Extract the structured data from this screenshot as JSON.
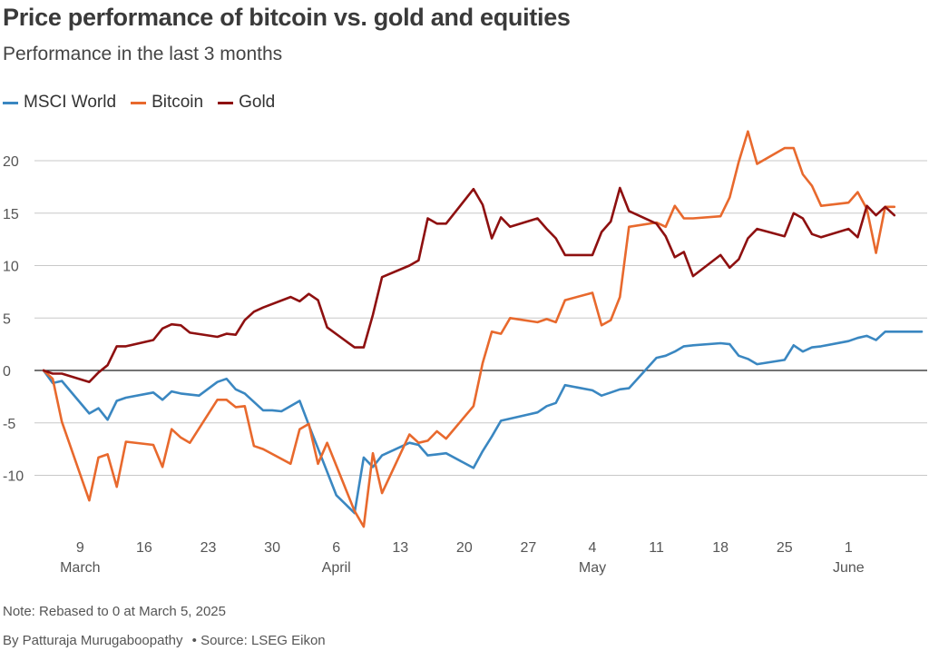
{
  "title": "Price performance of bitcoin vs. gold and equities",
  "subtitle": "Performance in the last 3 months",
  "note": "Note: Rebased to 0 at March 5, 2025",
  "credit": {
    "author": "By Patturaja Murugaboopathy",
    "separator": "•",
    "source": "Source: LSEG Eikon"
  },
  "chart_data": {
    "type": "line",
    "ylim": [
      -15,
      24
    ],
    "yticks": [
      20,
      15,
      10,
      5,
      0,
      -5,
      -10
    ],
    "grid": true,
    "legend_position": "top-left",
    "x_range": [
      0,
      96
    ],
    "xticks": [
      {
        "x": 4,
        "label": "9"
      },
      {
        "x": 11,
        "label": "16"
      },
      {
        "x": 18,
        "label": "23"
      },
      {
        "x": 25,
        "label": "30"
      },
      {
        "x": 32,
        "label": "6"
      },
      {
        "x": 39,
        "label": "13"
      },
      {
        "x": 46,
        "label": "20"
      },
      {
        "x": 53,
        "label": "27"
      },
      {
        "x": 60,
        "label": "4"
      },
      {
        "x": 67,
        "label": "11"
      },
      {
        "x": 74,
        "label": "18"
      },
      {
        "x": 81,
        "label": "25"
      },
      {
        "x": 88,
        "label": "1"
      }
    ],
    "months": [
      {
        "x": 4,
        "label": "March"
      },
      {
        "x": 32,
        "label": "April"
      },
      {
        "x": 60,
        "label": "May"
      },
      {
        "x": 88,
        "label": "June"
      }
    ],
    "series": [
      {
        "name": "MSCI World",
        "color": "#3a87c1",
        "x": [
          0,
          1,
          2,
          5,
          6,
          7,
          8,
          9,
          12,
          13,
          14,
          15,
          17,
          19,
          20,
          21,
          22,
          24,
          25,
          26,
          27,
          28,
          29,
          32,
          34,
          35,
          36,
          37,
          40,
          41,
          42,
          43,
          44,
          47,
          48,
          49,
          50,
          53,
          54,
          55,
          56,
          57,
          60,
          61,
          62,
          63,
          64,
          67,
          68,
          69,
          70,
          71,
          74,
          75,
          76,
          77,
          78,
          81,
          82,
          83,
          84,
          85,
          88,
          89,
          90,
          91,
          92,
          95,
          96
        ],
        "y": [
          0,
          -1.2,
          -1.0,
          -4.1,
          -3.6,
          -4.7,
          -2.9,
          -2.6,
          -2.1,
          -2.8,
          -2.0,
          -2.2,
          -2.4,
          -1.1,
          -0.8,
          -1.8,
          -2.2,
          -3.8,
          -3.8,
          -3.9,
          -3.4,
          -2.9,
          -5.2,
          -11.9,
          -13.6,
          -8.3,
          -9.2,
          -8.1,
          -6.9,
          -7.1,
          -8.1,
          -8.0,
          -7.9,
          -9.3,
          -7.7,
          -6.3,
          -4.8,
          -4.2,
          -4.0,
          -3.4,
          -3.1,
          -1.4,
          -1.9,
          -2.4,
          -2.1,
          -1.8,
          -1.7,
          1.2,
          1.4,
          1.8,
          2.3,
          2.4,
          2.6,
          2.5,
          1.4,
          1.1,
          0.6,
          1.0,
          2.4,
          1.8,
          2.2,
          2.3,
          2.8,
          3.1,
          3.3,
          2.9,
          3.7,
          3.7,
          3.7
        ]
      },
      {
        "name": "Bitcoin",
        "color": "#e8692d",
        "x": [
          0,
          1,
          2,
          5,
          6,
          7,
          8,
          9,
          12,
          13,
          14,
          15,
          16,
          19,
          20,
          21,
          22,
          23,
          24,
          27,
          28,
          29,
          30,
          31,
          34,
          35,
          36,
          37,
          40,
          41,
          42,
          43,
          44,
          47,
          48,
          49,
          50,
          51,
          54,
          55,
          56,
          57,
          60,
          61,
          62,
          63,
          64,
          67,
          68,
          69,
          70,
          71,
          74,
          75,
          76,
          77,
          78,
          81,
          82,
          83,
          84,
          85,
          88,
          89,
          90,
          91,
          92,
          93
        ],
        "y": [
          0,
          -0.8,
          -4.9,
          -12.4,
          -8.3,
          -8.0,
          -11.1,
          -6.8,
          -7.1,
          -9.2,
          -5.6,
          -6.4,
          -6.9,
          -2.8,
          -2.8,
          -3.5,
          -3.4,
          -7.2,
          -7.5,
          -8.9,
          -5.6,
          -5.1,
          -8.9,
          -6.9,
          -13.4,
          -14.9,
          -7.9,
          -11.7,
          -6.1,
          -6.9,
          -6.7,
          -5.8,
          -6.5,
          -3.4,
          0.7,
          3.7,
          3.5,
          5.0,
          4.6,
          4.9,
          4.6,
          6.7,
          7.4,
          4.3,
          4.8,
          7.0,
          13.7,
          14.1,
          13.7,
          15.7,
          14.5,
          14.5,
          14.7,
          16.5,
          19.9,
          22.8,
          19.7,
          21.2,
          21.2,
          18.7,
          17.6,
          15.7,
          16.0,
          17.0,
          15.4,
          11.2,
          15.6,
          15.6
        ]
      },
      {
        "name": "Gold",
        "color": "#8e1010",
        "x": [
          0,
          1,
          2,
          5,
          6,
          7,
          8,
          9,
          12,
          13,
          14,
          15,
          16,
          19,
          20,
          21,
          22,
          23,
          24,
          27,
          28,
          29,
          30,
          31,
          34,
          35,
          36,
          37,
          40,
          41,
          42,
          43,
          44,
          47,
          48,
          49,
          50,
          51,
          54,
          55,
          56,
          57,
          60,
          61,
          62,
          63,
          64,
          67,
          68,
          69,
          70,
          71,
          74,
          75,
          76,
          77,
          78,
          81,
          82,
          83,
          84,
          85,
          88,
          89,
          90,
          91,
          92,
          93
        ],
        "y": [
          0,
          -0.3,
          -0.3,
          -1.1,
          -0.2,
          0.5,
          2.3,
          2.3,
          2.9,
          4.0,
          4.4,
          4.3,
          3.6,
          3.2,
          3.5,
          3.4,
          4.8,
          5.6,
          6.0,
          7.0,
          6.6,
          7.3,
          6.7,
          4.1,
          2.2,
          2.2,
          5.3,
          8.9,
          10.0,
          10.5,
          14.5,
          14.0,
          14.0,
          17.3,
          15.8,
          12.6,
          14.6,
          13.7,
          14.5,
          13.5,
          12.6,
          11.0,
          11.0,
          13.2,
          14.2,
          17.4,
          15.2,
          14.0,
          12.8,
          10.8,
          11.3,
          9.0,
          11.0,
          9.8,
          10.6,
          12.6,
          13.5,
          12.8,
          15.0,
          14.5,
          13.0,
          12.7,
          13.5,
          12.7,
          15.7,
          14.8,
          15.6,
          14.8
        ]
      }
    ]
  }
}
